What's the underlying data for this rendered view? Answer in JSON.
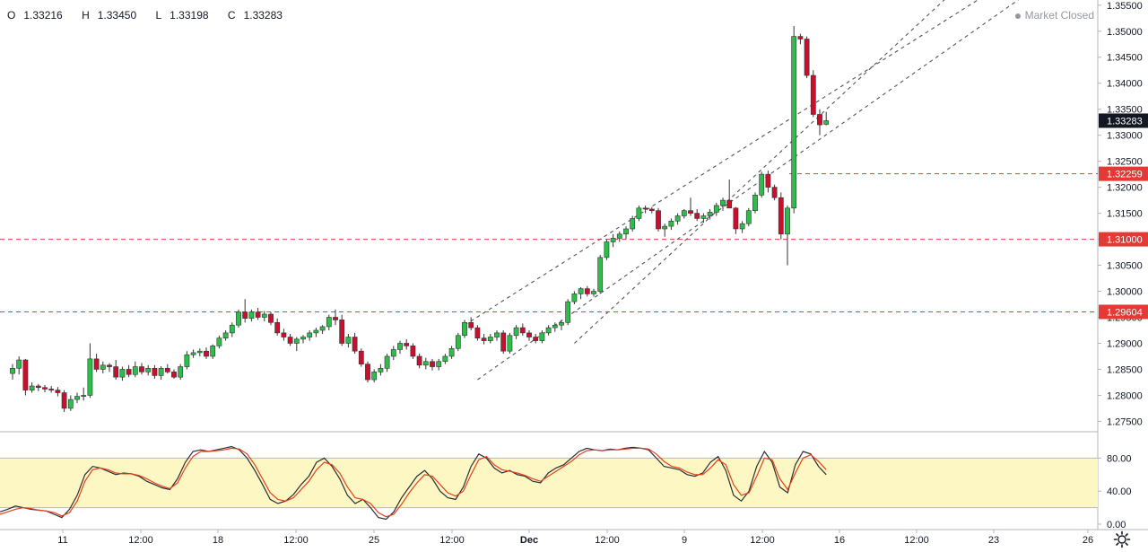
{
  "header": {
    "open_label": "O",
    "open": "1.33216",
    "high_label": "H",
    "high": "1.33450",
    "low_label": "L",
    "low": "1.33198",
    "close_label": "C",
    "close": "1.33283",
    "status": "Market Closed"
  },
  "price_tags": {
    "last": "1.33283",
    "resistance": "1.32259",
    "support_1": "1.31000",
    "support_2": "1.29604"
  },
  "colors": {
    "up": "#26a69a",
    "up_candle": "#2ebd4a",
    "down": "#c8102e",
    "level_line": "#e53935",
    "channel": "#555555",
    "osc_band": "#fdf7c3",
    "osc_k": "#2a2e39",
    "osc_d": "#e8401c"
  },
  "icons": {
    "settings": "gear-icon",
    "status": "dot-icon"
  },
  "chart_data": [
    {
      "type": "candlestick",
      "ylim": [
        1.273,
        1.356
      ],
      "y_ticks": [
        "1.35500",
        "1.35000",
        "1.34500",
        "1.34000",
        "1.33500",
        "1.33000",
        "1.32500",
        "1.32000",
        "1.31500",
        "1.31000",
        "1.30500",
        "1.30000",
        "1.29500",
        "1.29000",
        "1.28500",
        "1.28000",
        "1.27500"
      ],
      "x_tick_labels": [
        "11",
        "12:00",
        "18",
        "12:00",
        "25",
        "12:00",
        "Dec",
        "12:00",
        "9",
        "12:00",
        "16",
        "12:00",
        "23",
        "26"
      ],
      "levels": [
        1.32259,
        1.31,
        1.29604
      ],
      "ohlc": [
        [
          1.2842,
          1.286,
          1.283,
          1.2852
        ],
        [
          1.2852,
          1.2875,
          1.284,
          1.2868
        ],
        [
          1.2868,
          1.287,
          1.28,
          1.281
        ],
        [
          1.281,
          1.2825,
          1.2805,
          1.2818
        ],
        [
          1.2818,
          1.2822,
          1.2808,
          1.2815
        ],
        [
          1.2815,
          1.282,
          1.2806,
          1.2812
        ],
        [
          1.2812,
          1.2818,
          1.2805,
          1.281
        ],
        [
          1.281,
          1.2816,
          1.2798,
          1.2805
        ],
        [
          1.2805,
          1.281,
          1.2768,
          1.2775
        ],
        [
          1.2775,
          1.28,
          1.277,
          1.2792
        ],
        [
          1.2792,
          1.2805,
          1.2785,
          1.2798
        ],
        [
          1.2798,
          1.2815,
          1.279,
          1.28
        ],
        [
          1.28,
          1.29,
          1.2795,
          1.287
        ],
        [
          1.287,
          1.288,
          1.2845,
          1.285
        ],
        [
          1.285,
          1.2865,
          1.2842,
          1.2858
        ],
        [
          1.2858,
          1.2862,
          1.2845,
          1.2855
        ],
        [
          1.2855,
          1.2868,
          1.283,
          1.2835
        ],
        [
          1.2835,
          1.2855,
          1.2828,
          1.285
        ],
        [
          1.285,
          1.2858,
          1.2835,
          1.284
        ],
        [
          1.284,
          1.2865,
          1.2835,
          1.2855
        ],
        [
          1.2855,
          1.2862,
          1.284,
          1.2845
        ],
        [
          1.2845,
          1.2858,
          1.2838,
          1.2852
        ],
        [
          1.2852,
          1.2858,
          1.2832,
          1.2838
        ],
        [
          1.2838,
          1.2856,
          1.283,
          1.2852
        ],
        [
          1.2852,
          1.286,
          1.2842,
          1.2845
        ],
        [
          1.2845,
          1.285,
          1.2832,
          1.2835
        ],
        [
          1.2835,
          1.286,
          1.283,
          1.2855
        ],
        [
          1.2855,
          1.2885,
          1.285,
          1.2878
        ],
        [
          1.2878,
          1.2888,
          1.2872,
          1.2882
        ],
        [
          1.2882,
          1.289,
          1.2875,
          1.2885
        ],
        [
          1.2885,
          1.2892,
          1.287,
          1.2875
        ],
        [
          1.2875,
          1.2898,
          1.287,
          1.2895
        ],
        [
          1.2895,
          1.2915,
          1.289,
          1.291
        ],
        [
          1.291,
          1.2925,
          1.2905,
          1.292
        ],
        [
          1.292,
          1.294,
          1.2912,
          1.2935
        ],
        [
          1.2935,
          1.2965,
          1.293,
          1.296
        ],
        [
          1.296,
          1.2985,
          1.294,
          1.2948
        ],
        [
          1.2948,
          1.2965,
          1.2942,
          1.296
        ],
        [
          1.296,
          1.2968,
          1.2945,
          1.295
        ],
        [
          1.295,
          1.2962,
          1.2942,
          1.2956
        ],
        [
          1.2956,
          1.296,
          1.2935,
          1.294
        ],
        [
          1.294,
          1.2948,
          1.2915,
          1.292
        ],
        [
          1.292,
          1.2928,
          1.2905,
          1.2912
        ],
        [
          1.2912,
          1.2918,
          1.2895,
          1.29
        ],
        [
          1.29,
          1.2912,
          1.2885,
          1.2908
        ],
        [
          1.2908,
          1.2916,
          1.29,
          1.2912
        ],
        [
          1.2912,
          1.2925,
          1.2905,
          1.292
        ],
        [
          1.292,
          1.293,
          1.2912,
          1.2925
        ],
        [
          1.2925,
          1.2935,
          1.2918,
          1.2932
        ],
        [
          1.2932,
          1.2955,
          1.2925,
          1.295
        ],
        [
          1.295,
          1.2965,
          1.2935,
          1.2945
        ],
        [
          1.2945,
          1.2955,
          1.2895,
          1.29
        ],
        [
          1.29,
          1.2918,
          1.2892,
          1.2912
        ],
        [
          1.2912,
          1.292,
          1.288,
          1.2885
        ],
        [
          1.2885,
          1.289,
          1.2855,
          1.286
        ],
        [
          1.286,
          1.2865,
          1.2825,
          1.283
        ],
        [
          1.283,
          1.285,
          1.2825,
          1.2845
        ],
        [
          1.2845,
          1.286,
          1.2838,
          1.2852
        ],
        [
          1.2852,
          1.288,
          1.2845,
          1.2875
        ],
        [
          1.2875,
          1.2895,
          1.2868,
          1.2888
        ],
        [
          1.2888,
          1.2905,
          1.288,
          1.29
        ],
        [
          1.29,
          1.2908,
          1.2888,
          1.2895
        ],
        [
          1.2895,
          1.29,
          1.287,
          1.2875
        ],
        [
          1.2875,
          1.288,
          1.2852,
          1.2858
        ],
        [
          1.2858,
          1.2872,
          1.285,
          1.2865
        ],
        [
          1.2865,
          1.287,
          1.2848,
          1.2855
        ],
        [
          1.2855,
          1.287,
          1.2848,
          1.2865
        ],
        [
          1.2865,
          1.288,
          1.286,
          1.2875
        ],
        [
          1.2875,
          1.2895,
          1.287,
          1.289
        ],
        [
          1.289,
          1.292,
          1.2885,
          1.2915
        ],
        [
          1.2915,
          1.2945,
          1.291,
          1.294
        ],
        [
          1.294,
          1.295,
          1.2925,
          1.293
        ],
        [
          1.293,
          1.2935,
          1.2905,
          1.291
        ],
        [
          1.291,
          1.2918,
          1.2898,
          1.2905
        ],
        [
          1.2905,
          1.2918,
          1.29,
          1.2912
        ],
        [
          1.2912,
          1.2925,
          1.2905,
          1.292
        ],
        [
          1.292,
          1.2925,
          1.288,
          1.2885
        ],
        [
          1.2885,
          1.292,
          1.288,
          1.2915
        ],
        [
          1.2915,
          1.2935,
          1.2908,
          1.293
        ],
        [
          1.293,
          1.2938,
          1.2915,
          1.292
        ],
        [
          1.292,
          1.2925,
          1.2905,
          1.2912
        ],
        [
          1.2912,
          1.2918,
          1.29,
          1.2905
        ],
        [
          1.2905,
          1.2925,
          1.29,
          1.292
        ],
        [
          1.292,
          1.2935,
          1.2915,
          1.293
        ],
        [
          1.293,
          1.294,
          1.2922,
          1.2935
        ],
        [
          1.2935,
          1.2945,
          1.2925,
          1.294
        ],
        [
          1.294,
          1.2985,
          1.2935,
          1.298
        ],
        [
          1.298,
          1.3,
          1.2975,
          1.2995
        ],
        [
          1.2995,
          1.3008,
          1.2985,
          1.3005
        ],
        [
          1.3005,
          1.301,
          1.299,
          1.2995
        ],
        [
          1.2995,
          1.3005,
          1.299,
          1.3
        ],
        [
          1.3,
          1.307,
          1.2995,
          1.3065
        ],
        [
          1.3065,
          1.31,
          1.306,
          1.3095
        ],
        [
          1.3095,
          1.311,
          1.3085,
          1.3102
        ],
        [
          1.3102,
          1.3115,
          1.3095,
          1.311
        ],
        [
          1.311,
          1.3125,
          1.31,
          1.312
        ],
        [
          1.312,
          1.3145,
          1.3115,
          1.314
        ],
        [
          1.314,
          1.3165,
          1.3135,
          1.316
        ],
        [
          1.316,
          1.3165,
          1.315,
          1.3158
        ],
        [
          1.3158,
          1.3162,
          1.315,
          1.3155
        ],
        [
          1.3155,
          1.316,
          1.3115,
          1.312
        ],
        [
          1.312,
          1.313,
          1.3105,
          1.3125
        ],
        [
          1.3125,
          1.314,
          1.3118,
          1.3135
        ],
        [
          1.3135,
          1.315,
          1.3128,
          1.3145
        ],
        [
          1.3145,
          1.3158,
          1.314,
          1.3155
        ],
        [
          1.3155,
          1.318,
          1.3145,
          1.315
        ],
        [
          1.315,
          1.3158,
          1.3135,
          1.314
        ],
        [
          1.314,
          1.315,
          1.3132,
          1.3145
        ],
        [
          1.3145,
          1.3158,
          1.3138,
          1.3152
        ],
        [
          1.3152,
          1.317,
          1.3145,
          1.3165
        ],
        [
          1.3165,
          1.318,
          1.3155,
          1.3175
        ],
        [
          1.3175,
          1.3215,
          1.3165,
          1.316
        ],
        [
          1.316,
          1.3162,
          1.311,
          1.312
        ],
        [
          1.312,
          1.3135,
          1.3112,
          1.313
        ],
        [
          1.313,
          1.316,
          1.3125,
          1.3155
        ],
        [
          1.3155,
          1.319,
          1.315,
          1.3185
        ],
        [
          1.3185,
          1.323,
          1.318,
          1.3225
        ],
        [
          1.3225,
          1.3232,
          1.319,
          1.32
        ],
        [
          1.32,
          1.3205,
          1.3175,
          1.318
        ],
        [
          1.318,
          1.319,
          1.31,
          1.311
        ],
        [
          1.311,
          1.3165,
          1.305,
          1.316
        ],
        [
          1.316,
          1.351,
          1.315,
          1.349
        ],
        [
          1.349,
          1.3495,
          1.3475,
          1.3485
        ],
        [
          1.3485,
          1.349,
          1.341,
          1.3415
        ],
        [
          1.3415,
          1.3425,
          1.3335,
          1.334
        ],
        [
          1.334,
          1.335,
          1.33,
          1.332
        ],
        [
          1.3321,
          1.3345,
          1.3319,
          1.3328
        ]
      ],
      "channel": [
        {
          "from": [
            72,
            1.283
          ],
          "to": [
            158,
            1.358
          ],
          "style": "dashed"
        },
        {
          "from": [
            70,
            1.2935
          ],
          "to": [
            152,
            1.358
          ],
          "style": "dashed"
        },
        {
          "from": [
            87,
            1.29
          ],
          "to": [
            146,
            1.358
          ],
          "style": "dashed"
        }
      ]
    },
    {
      "type": "line",
      "ylim": [
        0,
        100
      ],
      "y_ticks": [
        "80.00",
        "40.00",
        "0.00"
      ],
      "band": [
        20,
        80
      ],
      "series": [
        {
          "values": [
            15,
            18,
            22,
            20,
            18,
            17,
            16,
            12,
            8,
            18,
            35,
            60,
            70,
            68,
            64,
            60,
            62,
            61,
            58,
            52,
            48,
            44,
            42,
            55,
            75,
            88,
            90,
            88,
            90,
            92,
            94,
            90,
            80,
            65,
            48,
            30,
            25,
            28,
            36,
            48,
            58,
            75,
            80,
            70,
            55,
            35,
            25,
            30,
            20,
            8,
            6,
            15,
            32,
            45,
            58,
            65,
            55,
            40,
            32,
            30,
            45,
            70,
            85,
            80,
            68,
            62,
            65,
            60,
            58,
            52,
            50,
            62,
            68,
            72,
            80,
            88,
            92,
            90,
            89,
            91,
            90,
            92,
            93,
            92,
            90,
            80,
            70,
            68,
            66,
            60,
            58,
            62,
            75,
            82,
            65,
            35,
            28,
            40,
            70,
            88,
            75,
            45,
            38,
            72,
            88,
            85,
            70,
            60
          ]
        },
        {
          "values": [
            12,
            15,
            18,
            20,
            19,
            17,
            16,
            14,
            10,
            14,
            28,
            52,
            66,
            68,
            66,
            62,
            61,
            61,
            59,
            55,
            50,
            46,
            43,
            50,
            68,
            82,
            88,
            88,
            89,
            90,
            92,
            91,
            85,
            72,
            55,
            38,
            30,
            28,
            32,
            42,
            52,
            66,
            75,
            72,
            62,
            45,
            32,
            30,
            25,
            14,
            9,
            12,
            24,
            38,
            50,
            60,
            58,
            48,
            38,
            34,
            40,
            60,
            78,
            82,
            72,
            66,
            64,
            62,
            59,
            55,
            52,
            58,
            64,
            70,
            76,
            84,
            89,
            90,
            89,
            90,
            90,
            91,
            92,
            92,
            91,
            85,
            76,
            70,
            68,
            63,
            60,
            60,
            68,
            78,
            72,
            48,
            35,
            38,
            58,
            80,
            78,
            55,
            42,
            62,
            80,
            84,
            76,
            66
          ]
        }
      ]
    }
  ]
}
